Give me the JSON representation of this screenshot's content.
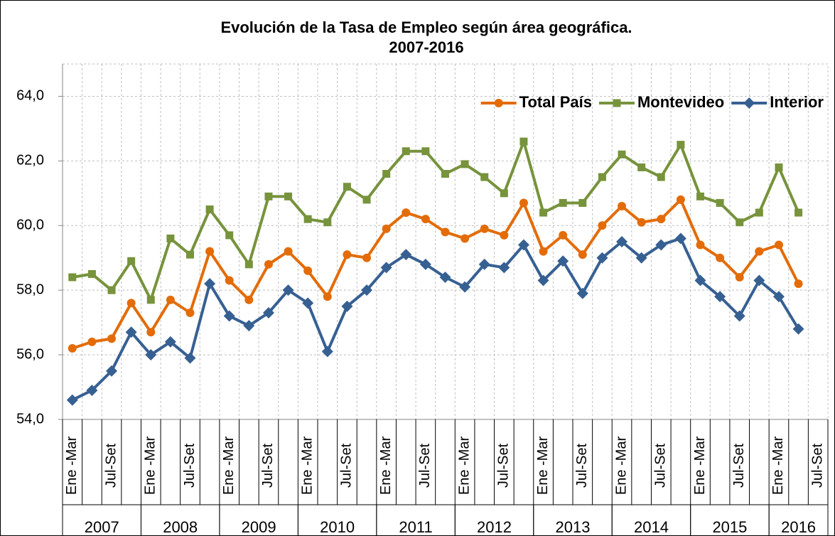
{
  "chart_data": {
    "type": "line",
    "title": "Evolución de la Tasa de Empleo según área geográfica.",
    "subtitle": "2007-2016",
    "categories": [
      "Ene -Mar",
      null,
      "Jul-Set",
      null,
      "Ene -Mar",
      null,
      "Jul-Set",
      null,
      "Ene -Mar",
      null,
      "Jul-Set",
      null,
      "Ene -Mar",
      null,
      "Jul-Set",
      null,
      "Ene -Mar",
      null,
      "Jul-Set",
      null,
      "Ene -Mar",
      null,
      "Jul-Set",
      null,
      "Ene -Mar",
      null,
      "Jul-Set",
      null,
      "Ene -Mar",
      null,
      "Jul-Set",
      null,
      "Ene -Mar",
      null,
      "Jul-Set",
      null,
      "Ene -Mar",
      null,
      "Jul-Set"
    ],
    "year_groups": [
      {
        "label": "2007",
        "count": 4
      },
      {
        "label": "2008",
        "count": 4
      },
      {
        "label": "2009",
        "count": 4
      },
      {
        "label": "2010",
        "count": 4
      },
      {
        "label": "2011",
        "count": 4
      },
      {
        "label": "2012",
        "count": 4
      },
      {
        "label": "2013",
        "count": 4
      },
      {
        "label": "2014",
        "count": 4
      },
      {
        "label": "2015",
        "count": 4
      },
      {
        "label": "2016",
        "count": 3
      }
    ],
    "series": [
      {
        "name": "Total País",
        "color": "#e36c09",
        "marker": "circle",
        "values": [
          56.2,
          56.4,
          56.5,
          57.6,
          56.7,
          57.7,
          57.3,
          59.2,
          58.3,
          57.7,
          58.8,
          59.2,
          58.6,
          57.8,
          59.1,
          59.0,
          59.9,
          60.4,
          60.2,
          59.8,
          59.6,
          59.9,
          59.7,
          60.7,
          59.2,
          59.7,
          59.1,
          60.0,
          60.6,
          60.1,
          60.2,
          60.8,
          59.4,
          59.0,
          58.4,
          59.2,
          59.4,
          58.2,
          null
        ]
      },
      {
        "name": "Montevideo",
        "color": "#77933c",
        "marker": "square",
        "values": [
          58.4,
          58.5,
          58.0,
          58.9,
          57.7,
          59.6,
          59.1,
          60.5,
          59.7,
          58.8,
          60.9,
          60.9,
          60.2,
          60.1,
          61.2,
          60.8,
          61.6,
          62.3,
          62.3,
          61.6,
          61.9,
          61.5,
          61.0,
          62.6,
          60.4,
          60.7,
          60.7,
          61.5,
          62.2,
          61.8,
          61.5,
          62.5,
          60.9,
          60.7,
          60.1,
          60.4,
          61.8,
          60.4,
          null
        ]
      },
      {
        "name": "Interior",
        "color": "#376092",
        "marker": "diamond",
        "values": [
          54.6,
          54.9,
          55.5,
          56.7,
          56.0,
          56.4,
          55.9,
          58.2,
          57.2,
          56.9,
          57.3,
          58.0,
          57.6,
          56.1,
          57.5,
          58.0,
          58.7,
          59.1,
          58.8,
          58.4,
          58.1,
          58.8,
          58.7,
          59.4,
          58.3,
          58.9,
          57.9,
          59.0,
          59.5,
          59.0,
          59.4,
          59.6,
          58.3,
          57.8,
          57.2,
          58.3,
          57.8,
          56.8,
          null
        ]
      }
    ],
    "ylim": [
      54,
      65
    ],
    "yticks": [
      {
        "value": 54,
        "label": "54,0"
      },
      {
        "value": 56,
        "label": "56,0"
      },
      {
        "value": 58,
        "label": "58,0"
      },
      {
        "value": 60,
        "label": "60,0"
      },
      {
        "value": 62,
        "label": "62,0"
      },
      {
        "value": 64,
        "label": "64,0"
      }
    ],
    "grid": true,
    "legend": "top-right"
  }
}
